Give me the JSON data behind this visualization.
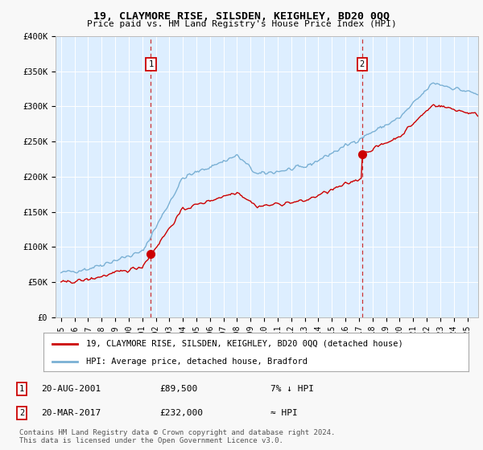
{
  "title": "19, CLAYMORE RISE, SILSDEN, KEIGHLEY, BD20 0QQ",
  "subtitle": "Price paid vs. HM Land Registry's House Price Index (HPI)",
  "ylabel_ticks": [
    "£0",
    "£50K",
    "£100K",
    "£150K",
    "£200K",
    "£250K",
    "£300K",
    "£350K",
    "£400K"
  ],
  "ylim": [
    0,
    400000
  ],
  "xlim_start": 1994.6,
  "xlim_end": 2025.8,
  "sale1_date": 2001.64,
  "sale1_price": 89500,
  "sale2_date": 2017.22,
  "sale2_price": 232000,
  "legend_line1": "19, CLAYMORE RISE, SILSDEN, KEIGHLEY, BD20 0QQ (detached house)",
  "legend_line2": "HPI: Average price, detached house, Bradford",
  "annotation1_label": "1",
  "annotation1_text": "20-AUG-2001",
  "annotation1_price": "£89,500",
  "annotation1_hpi": "7% ↓ HPI",
  "annotation2_label": "2",
  "annotation2_text": "20-MAR-2017",
  "annotation2_price": "£232,000",
  "annotation2_hpi": "≈ HPI",
  "footer": "Contains HM Land Registry data © Crown copyright and database right 2024.\nThis data is licensed under the Open Government Licence v3.0.",
  "plot_bg_color": "#ddeeff",
  "fig_bg_color": "#f8f8f8",
  "red_color": "#cc0000",
  "blue_color": "#7ab0d4",
  "grid_color": "#ffffff",
  "marker_box_color": "#cc0000",
  "dashed_color": "#cc3333"
}
